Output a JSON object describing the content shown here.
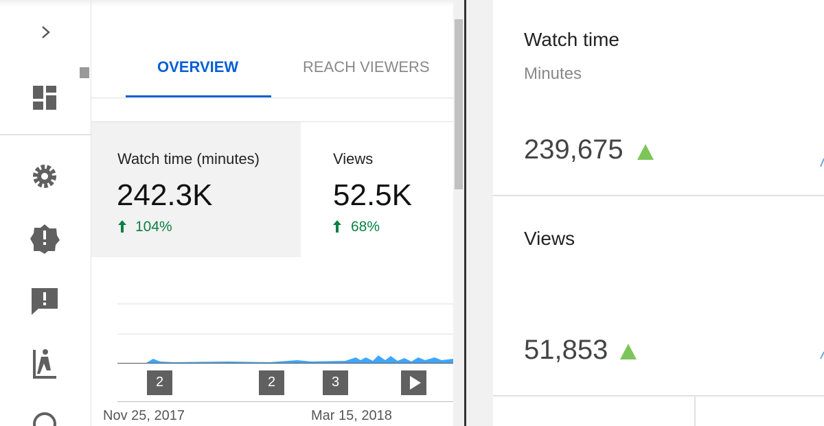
{
  "tabs": [
    "OVERVIEW",
    "REACH VIEWERS"
  ],
  "cards": [
    {
      "label": "Watch time (minutes)",
      "value": "242.3K",
      "change": "104%"
    },
    {
      "label": "Views",
      "value": "52.5K",
      "change": "68%"
    }
  ],
  "chart": {
    "markers": [
      "2",
      "2",
      "3"
    ],
    "dates": [
      "Nov 25, 2017",
      "Mar 15, 2018"
    ]
  },
  "right_panel": {
    "watch_time": {
      "title": "Watch time",
      "subtitle": "Minutes",
      "value": "239,675"
    },
    "views": {
      "title": "Views",
      "value": "51,853"
    }
  }
}
